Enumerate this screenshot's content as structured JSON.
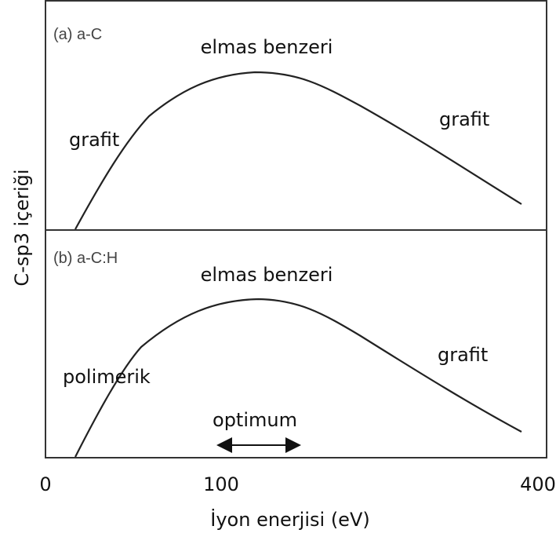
{
  "panels": [
    {
      "label": "(a)  a-C",
      "peak_label": "elmas benzeri",
      "left_label": "grafit",
      "right_label": "grafit"
    },
    {
      "label": "(b)  a-C:H",
      "peak_label": "elmas benzeri",
      "left_label": "polimerik",
      "right_label": "grafit",
      "arrow_label": "optimum"
    }
  ],
  "x_axis": {
    "title": "İyon enerjisi (eV)",
    "ticks": [
      "0",
      "100",
      "400"
    ]
  },
  "y_axis": {
    "title": "C-sp3 içeriği"
  }
}
